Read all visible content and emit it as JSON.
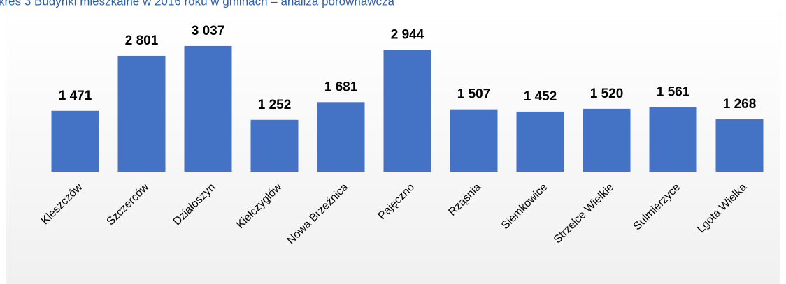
{
  "chart_data": {
    "type": "bar",
    "title": "kres 3 Budynki mieszkalne w 2016 roku w gminach – analiza porównawcza",
    "categories": [
      "Kleszczów",
      "Szczerców",
      "Działoszyn",
      "Kiełczygłów",
      "Nowa Brzeźnica",
      "Pajęczno",
      "Rząśnia",
      "Siemkowice",
      "Strzelce Wielkie",
      "Sulmierzyce",
      "Lgota Wielka"
    ],
    "values": [
      1471,
      2801,
      3037,
      1252,
      1681,
      2944,
      1507,
      1452,
      1520,
      1561,
      1268
    ],
    "value_labels": [
      "1 471",
      "2 801",
      "3 037",
      "1 252",
      "1 681",
      "2 944",
      "1 507",
      "1 452",
      "1 520",
      "1 561",
      "1 268"
    ],
    "color": "#4472c4",
    "ylim": [
      0,
      3500
    ]
  }
}
